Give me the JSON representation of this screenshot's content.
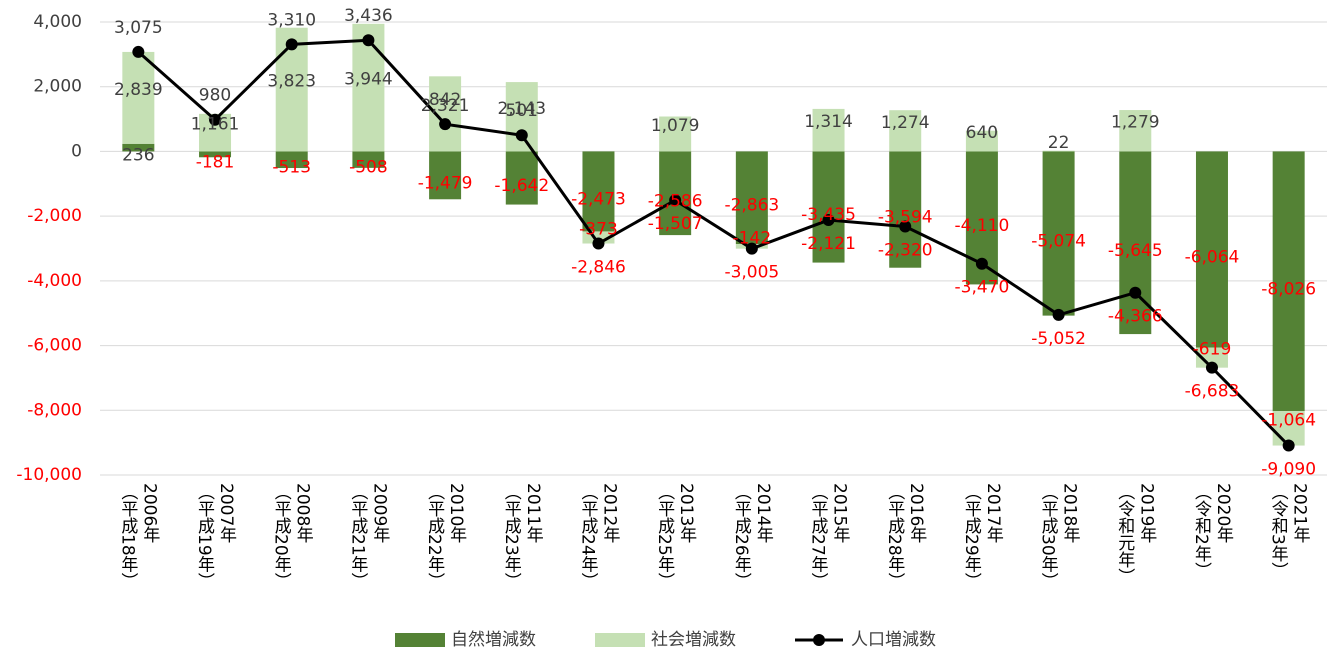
{
  "chart_data": {
    "type": "bar_line",
    "categories": [
      "2006年\n（平成18年）",
      "2007年\n（平成19年）",
      "2008年\n（平成20年）",
      "2009年\n（平成21年）",
      "2010年\n（平成22年）",
      "2011年\n（平成23年）",
      "2012年\n（平成24年）",
      "2013年\n（平成25年）",
      "2014年\n（平成26年）",
      "2015年\n（平成27年）",
      "2016年\n（平成28年）",
      "2017年\n（平成29年）",
      "2018年\n（平成30年）",
      "2019年\n（令和元年）",
      "2020年\n（令和2年）",
      "2021年\n（令和3年）"
    ],
    "series": [
      {
        "name": "自然増減数",
        "type": "bar",
        "color": "#548235",
        "values": [
          236,
          -181,
          -513,
          -508,
          -1479,
          -1642,
          -2473,
          -2586,
          -2863,
          -3435,
          -3594,
          -4110,
          -5074,
          -5645,
          -6064,
          -8026
        ],
        "value_labels": [
          "236",
          "-181",
          "-513",
          "-508",
          "-1,479",
          "-1,642",
          "-2,473",
          "-2,586",
          "-2,863",
          "-3,435",
          "-3,594",
          "-4,110",
          "-5,074",
          "-5,645",
          "-6,064",
          "-8,026"
        ]
      },
      {
        "name": "社会増減数",
        "type": "bar",
        "color": "#c5e0b4",
        "values": [
          2839,
          1161,
          3823,
          3944,
          2321,
          2143,
          -373,
          1079,
          -142,
          1314,
          1274,
          640,
          22,
          1279,
          -619,
          -1064
        ],
        "value_labels": [
          "2,839",
          "1,161",
          "3,823",
          "3,944",
          "2,321",
          "2,143",
          "-373",
          "1,079",
          "-142",
          "1,314",
          "1,274",
          "640",
          "22",
          "1,279",
          "-619",
          "-1,064"
        ]
      },
      {
        "name": "人口増減数",
        "type": "line",
        "color": "#000000",
        "values": [
          3075,
          980,
          3310,
          3436,
          842,
          501,
          -2846,
          -1507,
          -3005,
          -2121,
          -2320,
          -3470,
          -5052,
          -4366,
          -6683,
          -9090
        ],
        "value_labels": [
          "3,075",
          "980",
          "3,310",
          "3,436",
          "842",
          "501",
          "-2,846",
          "-1,507",
          "-3,005",
          "-2,121",
          "-2,320",
          "-3,470",
          "-5,052",
          "-4,366",
          "-6,683",
          "-9,090"
        ]
      }
    ],
    "ylim": [
      -10000,
      4000
    ],
    "yticks": [
      {
        "value": -10000,
        "label": "-10,000"
      },
      {
        "value": -8000,
        "label": "-8,000"
      },
      {
        "value": -6000,
        "label": "-6,000"
      },
      {
        "value": -4000,
        "label": "-4,000"
      },
      {
        "value": -2000,
        "label": "-2,000"
      },
      0,
      {
        "value": 2000,
        "label": "2,000"
      },
      {
        "value": 4000,
        "label": "4,000"
      }
    ],
    "grid": true,
    "legend": "bottom",
    "positive_label_color": "#404040",
    "negative_label_color": "#ff0000"
  }
}
